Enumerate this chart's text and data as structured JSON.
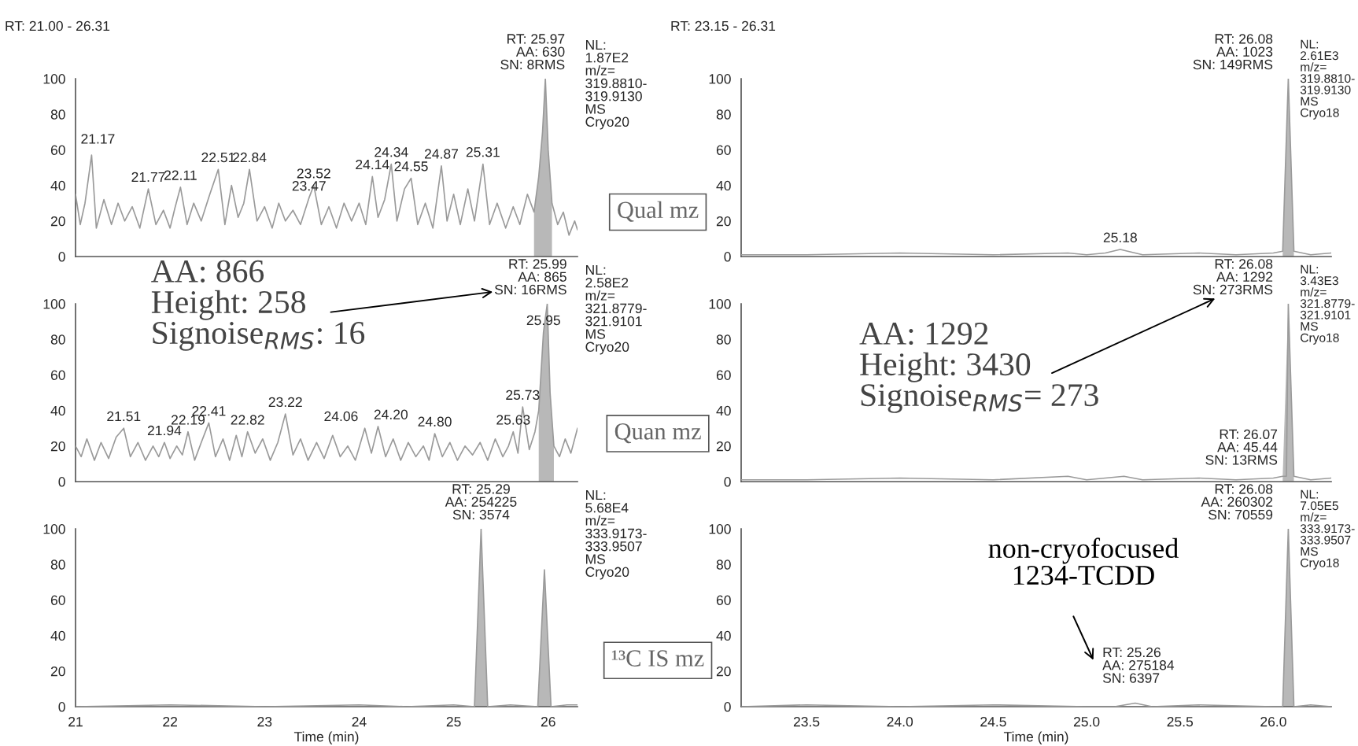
{
  "chart_data": [
    {
      "type": "line",
      "title": "RT: 21.00 - 26.31",
      "xlim": [
        21,
        26.31
      ],
      "ylim": [
        0,
        100
      ],
      "yticks": [
        0,
        20,
        40,
        60,
        80,
        100
      ],
      "tick_labels": "y",
      "series": [
        {
          "color": "#9a9a9a",
          "x": [
            21.0,
            21.05,
            21.1,
            21.17,
            21.22,
            21.3,
            21.38,
            21.45,
            21.52,
            21.6,
            21.68,
            21.77,
            21.85,
            21.93,
            22.0,
            22.05,
            22.11,
            22.18,
            22.25,
            22.33,
            22.42,
            22.51,
            22.58,
            22.65,
            22.72,
            22.78,
            22.84,
            22.92,
            23.0,
            23.08,
            23.15,
            23.22,
            23.3,
            23.38,
            23.47,
            23.52,
            23.6,
            23.68,
            23.76,
            23.84,
            23.92,
            24.0,
            24.07,
            24.14,
            24.2,
            24.27,
            24.34,
            24.4,
            24.48,
            24.55,
            24.62,
            24.7,
            24.78,
            24.87,
            24.93,
            25.0,
            25.07,
            25.15,
            25.22,
            25.31,
            25.38,
            25.46,
            25.55,
            25.63,
            25.7,
            25.78,
            25.85,
            25.9,
            25.94,
            25.97,
            26.0,
            26.04,
            26.1,
            26.16,
            26.22,
            26.28,
            26.31
          ],
          "values": [
            35,
            18,
            30,
            57,
            16,
            32,
            18,
            30,
            20,
            28,
            16,
            38,
            18,
            26,
            16,
            27,
            39,
            18,
            30,
            20,
            35,
            49,
            18,
            40,
            22,
            30,
            49,
            20,
            28,
            16,
            30,
            20,
            26,
            18,
            33,
            40,
            18,
            28,
            16,
            30,
            20,
            30,
            18,
            45,
            22,
            32,
            52,
            20,
            38,
            44,
            18,
            30,
            16,
            51,
            20,
            35,
            18,
            38,
            20,
            52,
            18,
            30,
            16,
            28,
            18,
            35,
            25,
            45,
            70,
            100,
            60,
            30,
            18,
            25,
            12,
            20,
            15
          ]
        },
        {
          "type": "area",
          "color": "#b8b8b8",
          "x": [
            25.85,
            25.9,
            25.94,
            25.97,
            26.0,
            26.04
          ],
          "values": [
            25,
            45,
            70,
            100,
            60,
            30
          ]
        }
      ],
      "annotations": [
        {
          "text": "21.17",
          "x": 21.17,
          "y": 57
        },
        {
          "text": "21.77",
          "x": 21.77,
          "y": 38
        },
        {
          "text": "22.11",
          "x": 22.11,
          "y": 39
        },
        {
          "text": "22.51",
          "x": 22.51,
          "y": 49
        },
        {
          "text": "22.84",
          "x": 22.84,
          "y": 49
        },
        {
          "text": "23.47",
          "x": 23.47,
          "y": 33
        },
        {
          "text": "23.52",
          "x": 23.52,
          "y": 40
        },
        {
          "text": "24.14",
          "x": 24.14,
          "y": 45
        },
        {
          "text": "24.34",
          "x": 24.34,
          "y": 52
        },
        {
          "text": "24.55",
          "x": 24.55,
          "y": 44
        },
        {
          "text": "24.87",
          "x": 24.87,
          "y": 51
        },
        {
          "text": "25.31",
          "x": 25.31,
          "y": 52
        },
        {
          "text": "RT: 25.97\nAA: 630\nSN: 8RMS",
          "x": 25.97,
          "y": 100
        },
        "NL:\n1.87E2\nm/z=\n319.8810-\n319.9130\nMS\nCryo20",
        "Qual mz"
      ]
    },
    {
      "type": "line",
      "xlim": [
        21,
        26.31
      ],
      "ylim": [
        0,
        100
      ],
      "yticks": [
        0,
        20,
        40,
        60,
        80,
        100
      ],
      "tick_labels": "y",
      "series": [
        {
          "color": "#9a9a9a",
          "x": [
            21.0,
            21.06,
            21.12,
            21.2,
            21.27,
            21.35,
            21.43,
            21.51,
            21.58,
            21.66,
            21.74,
            21.82,
            21.88,
            21.94,
            22.0,
            22.07,
            22.13,
            22.19,
            22.26,
            22.33,
            22.41,
            22.48,
            22.56,
            22.63,
            22.7,
            22.76,
            22.82,
            22.9,
            22.98,
            23.06,
            23.14,
            23.22,
            23.3,
            23.38,
            23.46,
            23.55,
            23.63,
            23.72,
            23.8,
            23.88,
            23.96,
            24.06,
            24.13,
            24.2,
            24.28,
            24.36,
            24.44,
            24.52,
            24.6,
            24.68,
            24.74,
            24.8,
            24.88,
            24.96,
            25.04,
            25.12,
            25.2,
            25.28,
            25.36,
            25.44,
            25.52,
            25.58,
            25.63,
            25.68,
            25.73,
            25.8,
            25.86,
            25.9,
            25.95,
            25.99,
            26.02,
            26.06,
            26.12,
            26.18,
            26.24,
            26.31
          ],
          "values": [
            20,
            14,
            24,
            12,
            22,
            13,
            25,
            30,
            14,
            22,
            12,
            20,
            14,
            22,
            13,
            20,
            15,
            28,
            12,
            22,
            33,
            14,
            24,
            12,
            26,
            14,
            28,
            16,
            24,
            12,
            22,
            38,
            15,
            24,
            12,
            22,
            13,
            26,
            14,
            20,
            12,
            30,
            16,
            31,
            14,
            24,
            12,
            22,
            14,
            20,
            12,
            27,
            14,
            22,
            12,
            20,
            15,
            22,
            12,
            24,
            14,
            20,
            28,
            16,
            42,
            18,
            28,
            40,
            84,
            100,
            50,
            20,
            14,
            24,
            16,
            30
          ]
        },
        {
          "type": "area",
          "color": "#b8b8b8",
          "x": [
            25.9,
            25.95,
            25.99,
            26.02,
            26.06
          ],
          "values": [
            40,
            84,
            100,
            50,
            20
          ]
        }
      ],
      "annotations": [
        {
          "text": "21.51",
          "x": 21.51,
          "y": 30
        },
        {
          "text": "21.94",
          "x": 21.94,
          "y": 22
        },
        {
          "text": "22.19",
          "x": 22.19,
          "y": 28
        },
        {
          "text": "22.41",
          "x": 22.41,
          "y": 33
        },
        {
          "text": "22.82",
          "x": 22.82,
          "y": 28
        },
        {
          "text": "23.22",
          "x": 23.22,
          "y": 38
        },
        {
          "text": "24.06",
          "x": 24.06,
          "y": 30
        },
        {
          "text": "24.20",
          "x": 24.2,
          "y": 31
        },
        {
          "text": "24.80",
          "x": 24.8,
          "y": 27
        },
        {
          "text": "25.63",
          "x": 25.63,
          "y": 28
        },
        {
          "text": "25.73",
          "x": 25.73,
          "y": 42
        },
        {
          "text": "25.95",
          "x": 25.95,
          "y": 84
        },
        {
          "text": "RT: 25.99\nAA: 865\nSN: 16RMS",
          "x": 25.99,
          "y": 100
        },
        "NL:\n2.58E2\nm/z=\n321.8779-\n321.9101\nMS\nCryo20",
        "Quan mz",
        "AA: 866\nHeight: 258\nSignoise$_{RMS}$: 16"
      ]
    },
    {
      "type": "line",
      "xlabel": "Time (min)",
      "xlim": [
        21,
        26.31
      ],
      "ylim": [
        0,
        100
      ],
      "xticks": [
        21,
        22,
        23,
        24,
        25,
        26
      ],
      "yticks": [
        0,
        20,
        40,
        60,
        80,
        100
      ],
      "series": [
        {
          "color": "#9a9a9a",
          "x": [
            21.0,
            22.0,
            23.0,
            24.0,
            24.5,
            25.0,
            25.22,
            25.29,
            25.36,
            25.6,
            25.89,
            25.96,
            26.03,
            26.2,
            26.31
          ],
          "values": [
            0,
            1,
            0,
            1,
            0,
            1,
            0,
            100,
            0,
            1,
            0,
            77,
            0,
            1,
            1
          ]
        },
        {
          "type": "area",
          "color": "#b8b8b8",
          "x": [
            25.22,
            25.29,
            25.36
          ],
          "values": [
            0,
            100,
            0
          ]
        },
        {
          "type": "area",
          "color": "#b8b8b8",
          "x": [
            25.89,
            25.96,
            26.03
          ],
          "values": [
            0,
            77,
            0
          ]
        }
      ],
      "annotations": [
        {
          "text": "RT: 25.29\nAA: 254225\nSN: 3574",
          "x": 25.29,
          "y": 100
        },
        "NL:\n5.68E4\nm/z=\n333.9173-\n333.9507\nMS\nCryo20",
        "¹³C IS mz"
      ]
    },
    {
      "type": "line",
      "title": "RT: 23.15 - 26.31",
      "xlim": [
        23.15,
        26.31
      ],
      "ylim": [
        0,
        100
      ],
      "yticks": [
        0,
        20,
        40,
        60,
        80,
        100
      ],
      "tick_labels": "y",
      "series": [
        {
          "color": "#9a9a9a",
          "x": [
            23.15,
            23.5,
            24.0,
            24.5,
            24.9,
            25.0,
            25.1,
            25.18,
            25.3,
            25.6,
            25.8,
            26.0,
            26.05,
            26.08,
            26.11,
            26.2,
            26.31
          ],
          "values": [
            1,
            1,
            2,
            1,
            2,
            1,
            2,
            4,
            1,
            2,
            1,
            2,
            3,
            100,
            3,
            1,
            2
          ]
        },
        {
          "type": "area",
          "color": "#b8b8b8",
          "x": [
            26.05,
            26.08,
            26.11
          ],
          "values": [
            3,
            100,
            3
          ]
        }
      ],
      "annotations": [
        {
          "text": "25.18",
          "x": 25.18,
          "y": 4
        },
        {
          "text": "RT: 26.08\nAA: 1023\nSN: 149RMS",
          "x": 26.08,
          "y": 100
        },
        "NL:\n2.61E3\nm/z=\n319.8810-\n319.9130\nMS\nCryo18"
      ]
    },
    {
      "type": "line",
      "xlim": [
        23.15,
        26.31
      ],
      "ylim": [
        0,
        100
      ],
      "yticks": [
        0,
        20,
        40,
        60,
        80,
        100
      ],
      "tick_labels": "y",
      "series": [
        {
          "color": "#9a9a9a",
          "x": [
            23.15,
            23.5,
            24.0,
            24.5,
            24.9,
            25.0,
            25.2,
            25.3,
            25.6,
            25.8,
            26.0,
            26.05,
            26.07,
            26.08,
            26.11,
            26.2,
            26.31
          ],
          "values": [
            1,
            1,
            2,
            1,
            3,
            1,
            3,
            1,
            2,
            1,
            2,
            3,
            3,
            100,
            3,
            1,
            2
          ]
        },
        {
          "type": "area",
          "color": "#b8b8b8",
          "x": [
            26.05,
            26.08,
            26.11
          ],
          "values": [
            3,
            100,
            3
          ]
        }
      ],
      "annotations": [
        {
          "text": "RT: 26.08\nAA: 1292\nSN: 273RMS",
          "x": 26.08,
          "y": 100
        },
        {
          "text": "RT: 26.07\nAA: 45.44\nSN: 13RMS",
          "x": 26.07,
          "y": 3
        },
        "NL:\n3.43E3\nm/z=\n321.8779-\n321.9101\nMS\nCryo18",
        "AA: 1292\nHeight: 3430\nSignoise$_{RMS}$= 273"
      ]
    },
    {
      "type": "line",
      "xlabel": "Time (min)",
      "xlim": [
        23.15,
        26.31
      ],
      "ylim": [
        0,
        100
      ],
      "xticks": [
        23.5,
        {
          "value": 24,
          "label": "24.0"
        },
        24.5,
        {
          "value": 25,
          "label": "25.0"
        },
        25.5,
        {
          "value": 26,
          "label": "26.0"
        }
      ],
      "yticks": [
        0,
        20,
        40,
        60,
        80,
        100
      ],
      "series": [
        {
          "color": "#9a9a9a",
          "x": [
            23.15,
            23.5,
            24.0,
            24.5,
            25.0,
            25.15,
            25.26,
            25.35,
            25.6,
            26.0,
            26.05,
            26.08,
            26.11,
            26.2,
            26.31
          ],
          "values": [
            0,
            1,
            0,
            1,
            0,
            0,
            2,
            0,
            1,
            0,
            0,
            100,
            0,
            1,
            0
          ]
        },
        {
          "type": "area",
          "color": "#b8b8b8",
          "x": [
            26.05,
            26.08,
            26.11
          ],
          "values": [
            0,
            100,
            0
          ]
        }
      ],
      "annotations": [
        {
          "text": "RT: 26.08\nAA: 260302\nSN: 70559",
          "x": 26.08,
          "y": 100
        },
        {
          "text": "RT: 25.26\nAA: 275184\nSN: 6397",
          "x": 25.26,
          "y": 2
        },
        "NL:\n7.05E5\nm/z=\n333.9173-\n333.9507\nMS\nCryo18",
        "non-cryofocused\n1234-TCDD"
      ]
    }
  ]
}
